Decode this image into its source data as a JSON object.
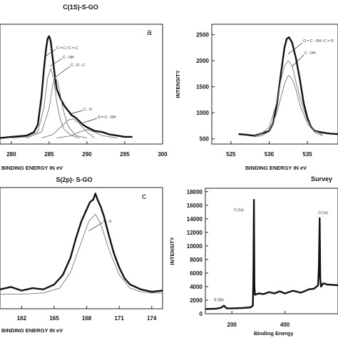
{
  "chart_data": [
    {
      "type": "line",
      "title": "C(1S)-S-GO",
      "panel_letter": "a",
      "xlabel": "BINDING ENERGY IN eV",
      "ylabel": "",
      "xlim": [
        278.5,
        300
      ],
      "ylim": [
        0,
        1
      ],
      "xticks": [
        280,
        285,
        290,
        295,
        300
      ],
      "yticks": [],
      "series": [
        {
          "style": "thick",
          "x": [
            278.5,
            280,
            282,
            283,
            283.5,
            284,
            284.3,
            284.6,
            284.8,
            285,
            285.2,
            285.5,
            285.8,
            286,
            286.5,
            287,
            287.5,
            288,
            288.5,
            289,
            289.5,
            290,
            291,
            292,
            293,
            294,
            295,
            296
          ],
          "y": [
            0.05,
            0.06,
            0.07,
            0.1,
            0.16,
            0.4,
            0.62,
            0.8,
            0.88,
            0.9,
            0.86,
            0.7,
            0.55,
            0.46,
            0.38,
            0.32,
            0.28,
            0.24,
            0.22,
            0.19,
            0.16,
            0.14,
            0.11,
            0.1,
            0.08,
            0.07,
            0.06,
            0.06
          ]
        },
        {
          "style": "thin",
          "x": [
            280,
            282,
            283.5,
            284.3,
            284.8,
            285.2,
            285.6,
            286,
            286.5,
            287,
            288,
            289
          ],
          "y": [
            0.05,
            0.06,
            0.1,
            0.3,
            0.55,
            0.63,
            0.55,
            0.35,
            0.2,
            0.12,
            0.07,
            0.05
          ]
        },
        {
          "style": "thin",
          "x": [
            282,
            284,
            285,
            285.5,
            285.8,
            286.2,
            286.8,
            287.5,
            288.5,
            290
          ],
          "y": [
            0.05,
            0.1,
            0.3,
            0.5,
            0.56,
            0.5,
            0.3,
            0.15,
            0.07,
            0.05
          ]
        },
        {
          "style": "thin",
          "x": [
            284,
            285.5,
            286.5,
            287.5,
            288.2,
            289,
            290,
            291
          ],
          "y": [
            0.05,
            0.08,
            0.14,
            0.2,
            0.21,
            0.17,
            0.1,
            0.05
          ]
        },
        {
          "style": "thin",
          "x": [
            286,
            288,
            289,
            290,
            291,
            292,
            294
          ],
          "y": [
            0.05,
            0.07,
            0.1,
            0.12,
            0.1,
            0.07,
            0.05
          ]
        }
      ],
      "annotations": [
        "C = C / C = C",
        "C - OH",
        "C - O - C",
        "C - O",
        "O = C - OH"
      ]
    },
    {
      "type": "line",
      "title": "",
      "xlabel": "BINDING ENERGY IN eV",
      "ylabel": "INTENSITY",
      "xlim": [
        522.5,
        539
      ],
      "ylim": [
        400,
        2700
      ],
      "xticks": [
        525,
        530,
        535
      ],
      "yticks": [
        500,
        1000,
        1500,
        2000,
        2500
      ],
      "series": [
        {
          "style": "thick",
          "x": [
            526,
            527,
            528,
            529,
            530,
            530.5,
            531,
            531.5,
            532,
            532.3,
            532.6,
            533,
            533.5,
            534,
            534.5,
            535,
            535.5,
            536,
            537,
            538,
            539
          ],
          "y": [
            590,
            580,
            560,
            600,
            650,
            800,
            1150,
            1700,
            2250,
            2420,
            2450,
            2350,
            2050,
            1650,
            1200,
            900,
            720,
            650,
            620,
            600,
            590
          ]
        },
        {
          "style": "thin",
          "x": [
            528,
            529,
            530,
            531,
            531.5,
            532,
            532.5,
            533,
            533.5,
            534,
            535,
            536,
            537
          ],
          "y": [
            560,
            600,
            720,
            1200,
            1600,
            1900,
            2000,
            1900,
            1600,
            1300,
            850,
            650,
            580
          ]
        },
        {
          "style": "thin",
          "x": [
            528,
            529,
            530,
            531,
            532,
            532.5,
            533,
            533.5,
            534,
            535,
            536,
            537
          ],
          "y": [
            540,
            560,
            640,
            1000,
            1550,
            1720,
            1650,
            1450,
            1150,
            800,
            620,
            560
          ]
        }
      ],
      "annotations": [
        "O = C - OH / C = O",
        "C - OH"
      ]
    },
    {
      "type": "line",
      "title": "S(2p)- S-GO",
      "panel_letter": "c",
      "xlabel": "BINDING ENERGY IN eV",
      "ylabel": "",
      "xlim": [
        160,
        175
      ],
      "ylim": [
        0,
        1
      ],
      "xticks": [
        162,
        165,
        168,
        171,
        174
      ],
      "yticks": [],
      "series": [
        {
          "style": "thick",
          "x": [
            160,
            161,
            162,
            163,
            164,
            165,
            165.8,
            166.5,
            167,
            167.5,
            168,
            168.3,
            168.6,
            168.8,
            169,
            169.3,
            169.6,
            170,
            170.5,
            171,
            171.5,
            172,
            173,
            174,
            175
          ],
          "y": [
            0.16,
            0.18,
            0.15,
            0.17,
            0.16,
            0.2,
            0.28,
            0.42,
            0.58,
            0.72,
            0.82,
            0.88,
            0.9,
            0.95,
            0.9,
            0.84,
            0.76,
            0.62,
            0.46,
            0.34,
            0.25,
            0.2,
            0.16,
            0.14,
            0.15
          ]
        },
        {
          "style": "thin",
          "x": [
            160,
            162,
            164,
            165.5,
            166.5,
            167.5,
            168.2,
            168.8,
            169.3,
            170,
            171,
            172,
            173,
            174,
            175
          ],
          "y": [
            0.12,
            0.12,
            0.13,
            0.17,
            0.3,
            0.55,
            0.72,
            0.78,
            0.7,
            0.5,
            0.28,
            0.17,
            0.14,
            0.13,
            0.13
          ]
        }
      ],
      "annotations": [
        "C - S"
      ]
    },
    {
      "type": "line",
      "title": "Survey",
      "xlabel": "Binding Energy",
      "ylabel": "INTENSITY",
      "xlim": [
        100,
        600
      ],
      "ylim": [
        0,
        18500
      ],
      "xticks": [
        200,
        400
      ],
      "yticks": [
        0,
        2000,
        4000,
        6000,
        8000,
        10000,
        12000,
        14000,
        16000,
        18000
      ],
      "series": [
        {
          "style": "thick",
          "x": [
            100,
            140,
            160,
            170,
            180,
            200,
            240,
            270,
            279,
            281,
            283,
            285,
            287,
            300,
            320,
            340,
            360,
            380,
            400,
            430,
            460,
            490,
            510,
            525,
            528,
            531,
            533,
            536,
            545,
            560,
            600
          ],
          "y": [
            700,
            750,
            900,
            1200,
            800,
            800,
            850,
            950,
            1200,
            5000,
            16800,
            4000,
            2800,
            3000,
            2900,
            3200,
            3000,
            3300,
            3000,
            3400,
            3100,
            3600,
            3700,
            4200,
            7000,
            14100,
            5200,
            4000,
            4500,
            4300,
            4200
          ]
        }
      ],
      "annotations": [
        "C (1s)",
        "O (1s)",
        "S (2p)"
      ]
    }
  ]
}
